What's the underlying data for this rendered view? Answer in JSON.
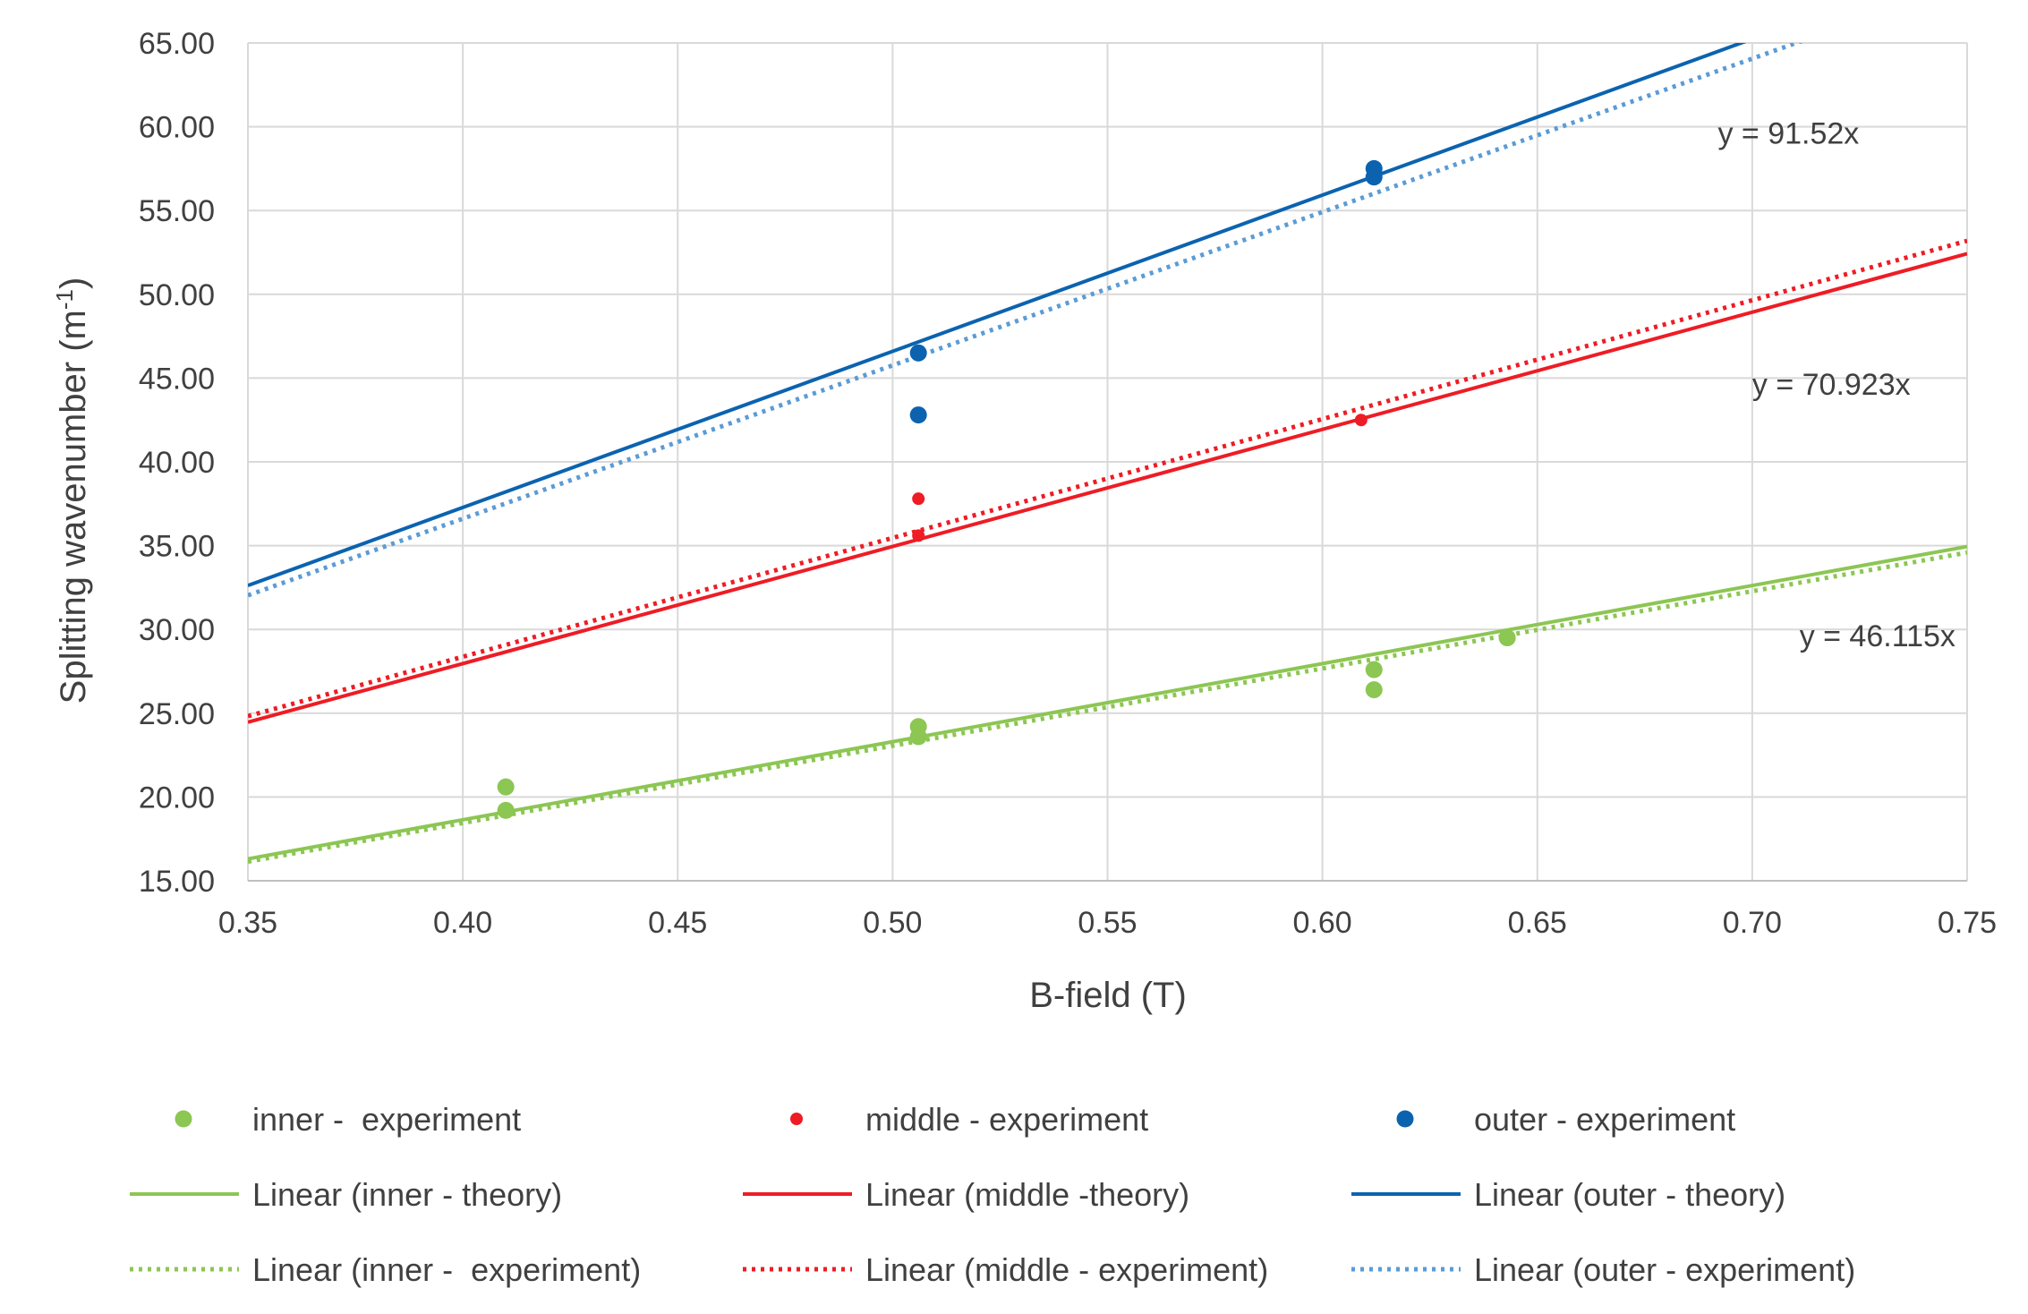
{
  "chart_data": {
    "type": "scatter",
    "xlabel": "B-field (T)",
    "ylabel": "Splitting wavenumber (m",
    "ylabel_sup": "-1",
    "ylabel_close": ")",
    "xlim": [
      0.35,
      0.75
    ],
    "ylim": [
      15,
      65
    ],
    "x_ticks": [
      0.35,
      0.4,
      0.45,
      0.5,
      0.55,
      0.6,
      0.65,
      0.7,
      0.75
    ],
    "x_tick_labels": [
      "0.35",
      "0.40",
      "0.45",
      "0.50",
      "0.55",
      "0.60",
      "0.65",
      "0.70",
      "0.75"
    ],
    "y_ticks": [
      15,
      20,
      25,
      30,
      35,
      40,
      45,
      50,
      55,
      60,
      65
    ],
    "y_tick_labels": [
      "15.00",
      "20.00",
      "25.00",
      "30.00",
      "35.00",
      "40.00",
      "45.00",
      "50.00",
      "55.00",
      "60.00",
      "65.00"
    ],
    "grid": true,
    "legend_position": "bottom",
    "series": [
      {
        "name": "inner -  experiment",
        "kind": "points",
        "color": "#8cc653",
        "marker_size": "large",
        "points": [
          [
            0.41,
            20.6
          ],
          [
            0.41,
            19.2
          ],
          [
            0.506,
            24.2
          ],
          [
            0.506,
            23.6
          ],
          [
            0.612,
            27.6
          ],
          [
            0.612,
            26.4
          ],
          [
            0.643,
            29.5
          ]
        ]
      },
      {
        "name": "middle - experiment",
        "kind": "points",
        "color": "#ee1c25",
        "marker_size": "small",
        "points": [
          [
            0.506,
            37.8
          ],
          [
            0.506,
            35.6
          ],
          [
            0.609,
            42.5
          ]
        ]
      },
      {
        "name": "outer - experiment",
        "kind": "points",
        "color": "#0b63b0",
        "marker_size": "large",
        "points": [
          [
            0.506,
            46.5
          ],
          [
            0.506,
            42.8
          ],
          [
            0.612,
            57.5
          ],
          [
            0.612,
            57.0
          ]
        ]
      },
      {
        "name": "Linear (inner - theory)",
        "kind": "line",
        "style": "solid",
        "color": "#8cc653",
        "slope": 46.6
      },
      {
        "name": "Linear (middle -theory)",
        "kind": "line",
        "style": "solid",
        "color": "#ee1c25",
        "slope": 69.9
      },
      {
        "name": "Linear (outer - theory)",
        "kind": "line",
        "style": "solid",
        "color": "#0b63b0",
        "slope": 93.2
      },
      {
        "name": "Linear (inner -  experiment)",
        "kind": "line",
        "style": "dotted",
        "color": "#8cc653",
        "slope": 46.115
      },
      {
        "name": "Linear (middle - experiment)",
        "kind": "line",
        "style": "dotted",
        "color": "#ee1c25",
        "slope": 70.923
      },
      {
        "name": "Linear (outer - experiment)",
        "kind": "line",
        "style": "dotted",
        "color": "#5b9bd5",
        "slope": 91.52
      }
    ],
    "annotations": [
      {
        "text": "y = 91.52x",
        "x": 0.692,
        "y": 59.0
      },
      {
        "text": "y = 70.923x",
        "x": 0.7,
        "y": 44.0
      },
      {
        "text": "y = 46.115x",
        "x": 0.711,
        "y": 29.0
      }
    ]
  }
}
